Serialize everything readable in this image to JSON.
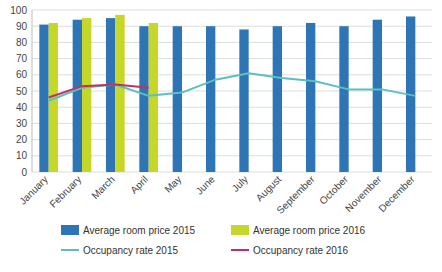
{
  "chart_data": {
    "type": "bar",
    "categories": [
      "January",
      "February",
      "March",
      "April",
      "May",
      "June",
      "July",
      "August",
      "September",
      "October",
      "November",
      "December"
    ],
    "series": [
      {
        "name": "Average room price 2015",
        "type": "bar",
        "color": "#2E75B6",
        "values": [
          91,
          94,
          95,
          90,
          90,
          90,
          88,
          90,
          92,
          90,
          94,
          96
        ]
      },
      {
        "name": "Average room price 2016",
        "type": "bar",
        "color": "#C5D729",
        "values": [
          92,
          95,
          97,
          92,
          null,
          null,
          null,
          null,
          null,
          null,
          null,
          null
        ]
      },
      {
        "name": "Occupancy rate 2015",
        "type": "line",
        "color": "#5BBFBF",
        "values": [
          44,
          52,
          54,
          47,
          49,
          57,
          61,
          58,
          56,
          51,
          51,
          47
        ]
      },
      {
        "name": "Occupancy rate 2016",
        "type": "line",
        "color": "#BF3069",
        "values": [
          46,
          53,
          54,
          52,
          null,
          null,
          null,
          null,
          null,
          null,
          null,
          null
        ]
      }
    ],
    "ylim": [
      0,
      100
    ],
    "yticks": [
      0,
      10,
      20,
      30,
      40,
      50,
      60,
      70,
      80,
      90,
      100
    ],
    "grid": true,
    "legend": "bottom"
  }
}
